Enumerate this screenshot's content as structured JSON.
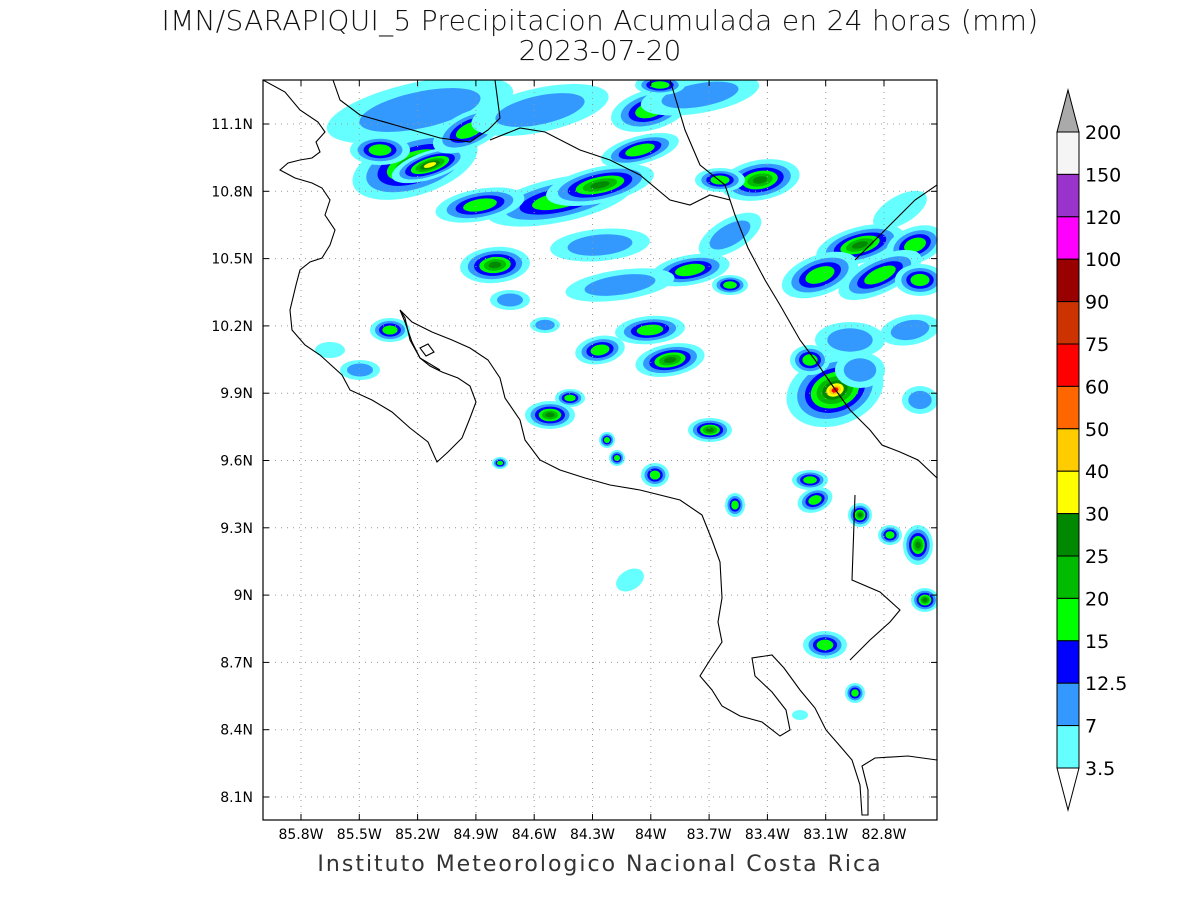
{
  "title_line1": "IMN/SARAPIQUI_5 Precipitacion Acumulada en 24 horas (mm)",
  "title_line2": "2023-07-20",
  "footer": "Instituto Meteorologico Nacional Costa Rica",
  "map": {
    "lon_labels": [
      "85.8W",
      "85.5W",
      "85.2W",
      "84.9W",
      "84.6W",
      "84.3W",
      "84W",
      "83.7W",
      "83.4W",
      "83.1W",
      "82.8W"
    ],
    "lat_labels": [
      "11.1N",
      "10.8N",
      "10.5N",
      "10.2N",
      "9.9N",
      "9.6N",
      "9.3N",
      "9N",
      "8.7N",
      "8.4N",
      "8.1N"
    ]
  },
  "legend": {
    "levels": [
      "200",
      "150",
      "120",
      "100",
      "90",
      "75",
      "60",
      "50",
      "40",
      "30",
      "25",
      "20",
      "15",
      "12.5",
      "7",
      "3.5"
    ],
    "colors": [
      "#f5f5f5",
      "#9933cc",
      "#ff00ff",
      "#990000",
      "#cc3300",
      "#ff0000",
      "#ff6600",
      "#ffcc00",
      "#ffff00",
      "#008800",
      "#00bb00",
      "#00ff00",
      "#0000ff",
      "#3399ff",
      "#66ffff"
    ],
    "top_arrow_color": "#aaaaaa",
    "bottom_arrow_color": "#ffffff"
  },
  "colors": {
    "c35": "#66ffff",
    "c7": "#3399ff",
    "c125": "#0000ff",
    "c15": "#00ff00",
    "c20": "#00bb00",
    "c25": "#008800",
    "c30": "#ffff00",
    "c40": "#ffcc00",
    "c60": "#ff0000"
  }
}
